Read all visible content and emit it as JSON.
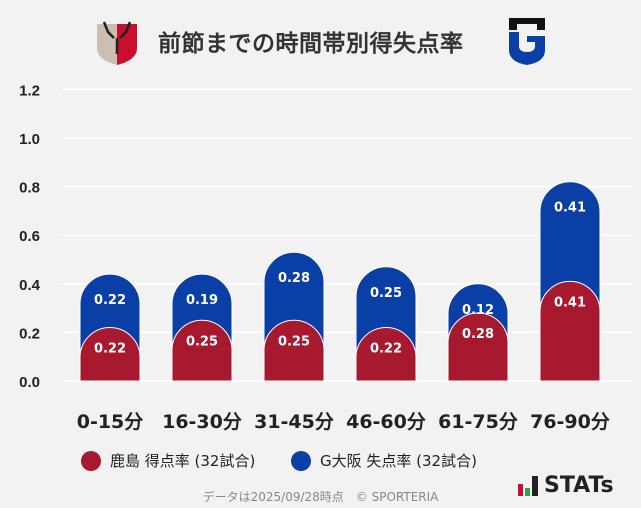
{
  "title": "前節までの時間帯別得失点率",
  "logos": {
    "left": "Kashima Antlers crest",
    "right": "Gamba Osaka crest"
  },
  "chart_data": {
    "type": "bar",
    "stacked": true,
    "categories": [
      "0-15分",
      "16-30分",
      "31-45分",
      "46-60分",
      "61-75分",
      "76-90分"
    ],
    "series": [
      {
        "name": "鹿島 得点率 (32試合)",
        "color": "#a6192e",
        "values": [
          0.22,
          0.25,
          0.25,
          0.22,
          0.28,
          0.41
        ]
      },
      {
        "name": "G大阪 失点率 (32試合)",
        "color": "#0a3fa6",
        "values": [
          0.22,
          0.19,
          0.28,
          0.25,
          0.12,
          0.41
        ]
      }
    ],
    "yticks": [
      "0.0",
      "0.2",
      "0.4",
      "0.6",
      "0.8",
      "1.0",
      "1.2"
    ],
    "ylim": [
      0,
      1.2
    ],
    "grid": true,
    "legend": "bottom"
  },
  "footer": "データは2025/09/28時点　© SPORTERIA",
  "brand": "STATs"
}
